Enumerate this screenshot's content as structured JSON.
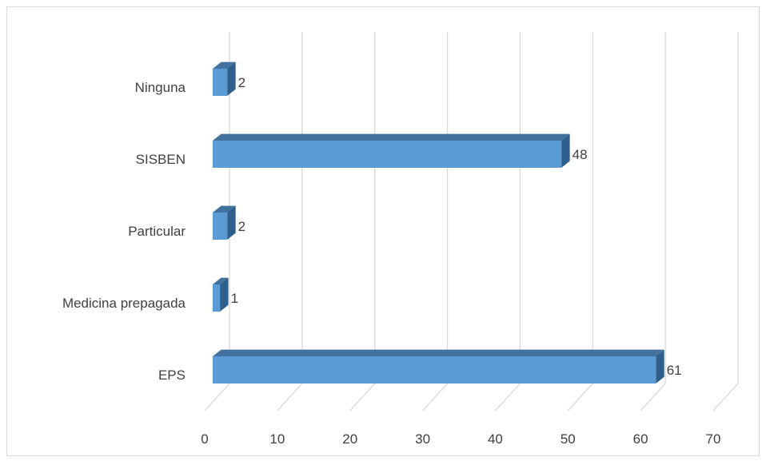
{
  "chart_data": {
    "type": "bar",
    "orientation": "horizontal",
    "style": "3d",
    "categories": [
      "Ninguna",
      "SISBEN",
      "Particular",
      "Medicina prepagada",
      "EPS"
    ],
    "values": [
      2,
      48,
      2,
      1,
      61
    ],
    "data_labels": [
      "2",
      "48",
      "2",
      "1",
      "61"
    ],
    "title": "",
    "xlabel": "",
    "ylabel": "",
    "xlim": [
      0,
      70
    ],
    "x_ticks": [
      0,
      10,
      20,
      30,
      40,
      50,
      60,
      70
    ],
    "x_tick_labels": [
      "0",
      "10",
      "20",
      "30",
      "40",
      "50",
      "60",
      "70"
    ],
    "grid": true,
    "legend": "none",
    "colors": {
      "bar_front": "#5b9bd5",
      "bar_top": "#41719c",
      "bar_side": "#2e5f8d",
      "grid": "#d9d9d9",
      "text": "#404040"
    }
  }
}
